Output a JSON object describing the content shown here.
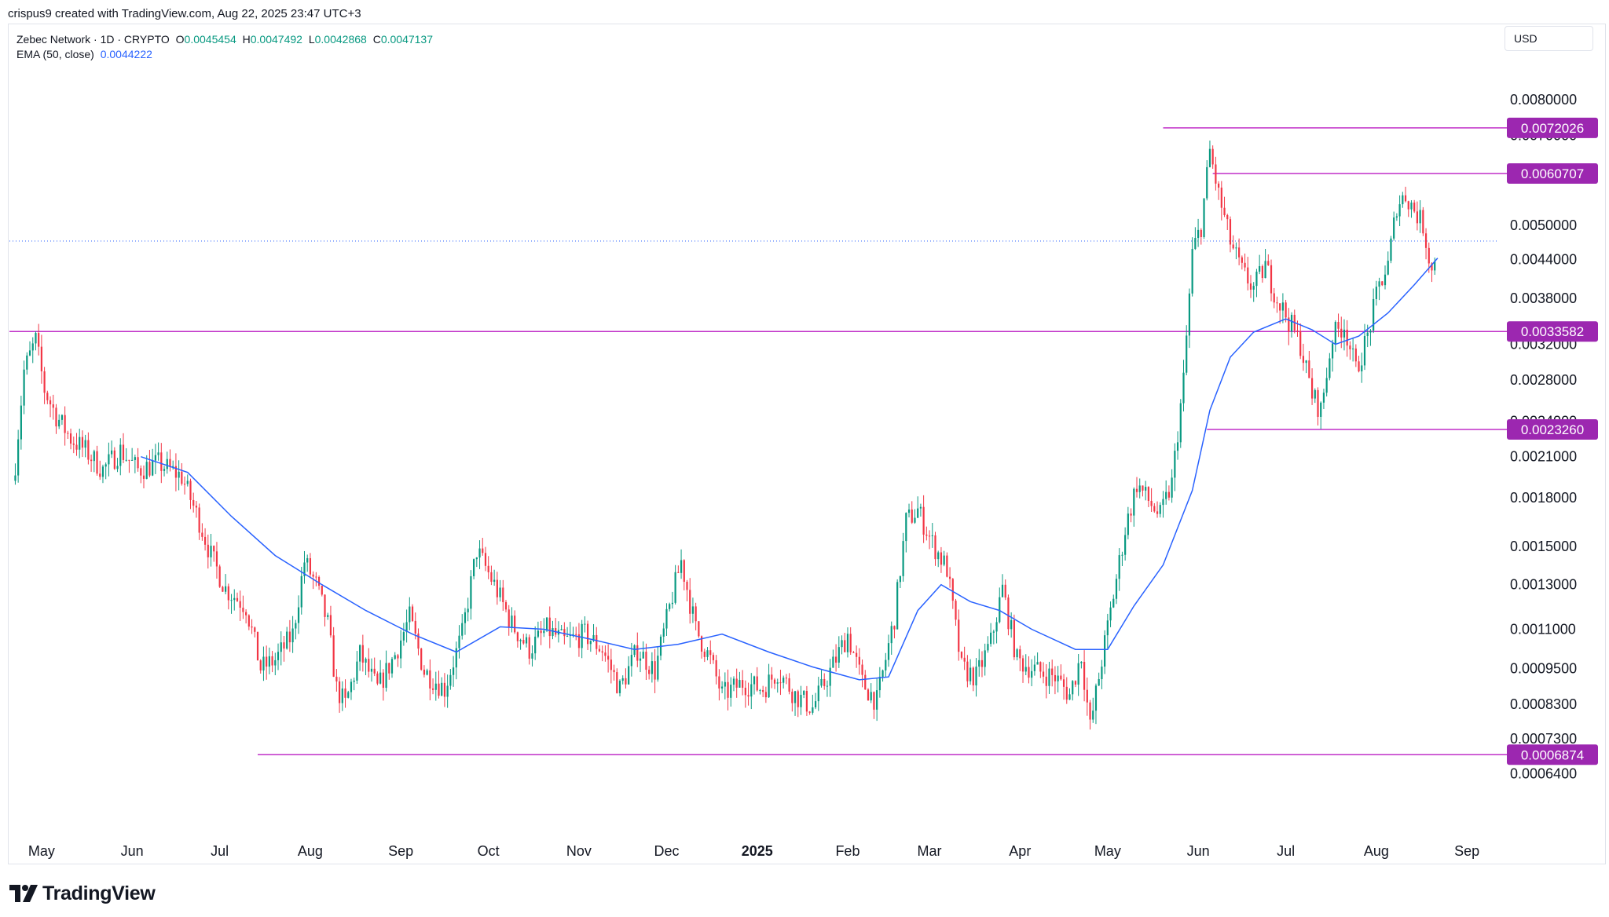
{
  "header": {
    "attribution": "crispus9 created with TradingView.com, Aug 22, 2025 23:47 UTC+3"
  },
  "legend": {
    "symbol": "Zebec Network · 1D · CRYPTO",
    "o_label": "O",
    "o_value": "0.0045454",
    "h_label": "H",
    "h_value": "0.0047492",
    "l_label": "L",
    "l_value": "0.0042868",
    "c_label": "C",
    "c_value": "0.0047137",
    "ema_label": "EMA (50, close)",
    "ema_value": "0.0044222"
  },
  "currency_button": "USD",
  "brand": {
    "name": "TradingView"
  },
  "colors": {
    "up": "#089981",
    "down": "#f23645",
    "ema": "#2962ff",
    "level": "#c02fc8",
    "grid": "#ffffff",
    "text": "#131722"
  },
  "chart_data": {
    "type": "candlestick",
    "scale": "log",
    "ylim": [
      0.00059,
      0.0088
    ],
    "x_start": "2024-04-20",
    "x_end": "2025-09-12",
    "y_ticks": [
      "0.0080000",
      "0.0070000",
      "0.0050000",
      "0.0044000",
      "0.0038000",
      "0.0032000",
      "0.0028000",
      "0.0024000",
      "0.0021000",
      "0.0018000",
      "0.0015000",
      "0.0013000",
      "0.0011000",
      "0.0009500",
      "0.0008300",
      "0.0007300",
      "0.0006400"
    ],
    "x_ticks": [
      {
        "date": "2024-05-01",
        "label": "May"
      },
      {
        "date": "2024-06-01",
        "label": "Jun"
      },
      {
        "date": "2024-07-01",
        "label": "Jul"
      },
      {
        "date": "2024-08-01",
        "label": "Aug"
      },
      {
        "date": "2024-09-01",
        "label": "Sep"
      },
      {
        "date": "2024-10-01",
        "label": "Oct"
      },
      {
        "date": "2024-11-01",
        "label": "Nov"
      },
      {
        "date": "2024-12-01",
        "label": "Dec"
      },
      {
        "date": "2025-01-01",
        "label": "2025",
        "bold": true
      },
      {
        "date": "2025-02-01",
        "label": "Feb"
      },
      {
        "date": "2025-03-01",
        "label": "Mar"
      },
      {
        "date": "2025-04-01",
        "label": "Apr"
      },
      {
        "date": "2025-05-01",
        "label": "May"
      },
      {
        "date": "2025-06-01",
        "label": "Jun"
      },
      {
        "date": "2025-07-01",
        "label": "Jul"
      },
      {
        "date": "2025-08-01",
        "label": "Aug"
      },
      {
        "date": "2025-09-01",
        "label": "Sep"
      }
    ],
    "horizontal_levels": [
      {
        "value": 0.0072026,
        "label": "0.0072026",
        "from": "2025-05-20"
      },
      {
        "value": 0.0060707,
        "label": "0.0060707",
        "from": "2025-06-06"
      },
      {
        "value": 0.0033582,
        "label": "0.0033582",
        "from": "2024-04-20"
      },
      {
        "value": 0.002326,
        "label": "0.0023260",
        "from": "2025-06-04"
      },
      {
        "value": 0.0006874,
        "label": "0.0006874",
        "from": "2024-07-14"
      }
    ],
    "last_price_line": 0.0047137,
    "close_series": [
      {
        "date": "2024-04-22",
        "close": 0.00205
      },
      {
        "date": "2024-04-25",
        "close": 0.0029
      },
      {
        "date": "2024-04-29",
        "close": 0.00325
      },
      {
        "date": "2024-05-02",
        "close": 0.0027
      },
      {
        "date": "2024-05-06",
        "close": 0.00245
      },
      {
        "date": "2024-05-11",
        "close": 0.00225
      },
      {
        "date": "2024-05-16",
        "close": 0.00215
      },
      {
        "date": "2024-05-22",
        "close": 0.002
      },
      {
        "date": "2024-05-28",
        "close": 0.00215
      },
      {
        "date": "2024-06-03",
        "close": 0.002
      },
      {
        "date": "2024-06-10",
        "close": 0.00205
      },
      {
        "date": "2024-06-18",
        "close": 0.00195
      },
      {
        "date": "2024-06-24",
        "close": 0.00165
      },
      {
        "date": "2024-06-28",
        "close": 0.00145
      },
      {
        "date": "2024-07-03",
        "close": 0.00128
      },
      {
        "date": "2024-07-10",
        "close": 0.0012
      },
      {
        "date": "2024-07-15",
        "close": 0.00095
      },
      {
        "date": "2024-07-20",
        "close": 0.00098
      },
      {
        "date": "2024-07-26",
        "close": 0.00108
      },
      {
        "date": "2024-07-30",
        "close": 0.00142
      },
      {
        "date": "2024-08-03",
        "close": 0.0013
      },
      {
        "date": "2024-08-07",
        "close": 0.00112
      },
      {
        "date": "2024-08-10",
        "close": 0.00088
      },
      {
        "date": "2024-08-13",
        "close": 0.00083
      },
      {
        "date": "2024-08-18",
        "close": 0.001
      },
      {
        "date": "2024-08-24",
        "close": 0.00088
      },
      {
        "date": "2024-08-30",
        "close": 0.001
      },
      {
        "date": "2024-09-04",
        "close": 0.00115
      },
      {
        "date": "2024-09-09",
        "close": 0.00094
      },
      {
        "date": "2024-09-16",
        "close": 0.00088
      },
      {
        "date": "2024-09-22",
        "close": 0.00108
      },
      {
        "date": "2024-09-27",
        "close": 0.00148
      },
      {
        "date": "2024-10-03",
        "close": 0.0013
      },
      {
        "date": "2024-10-09",
        "close": 0.00112
      },
      {
        "date": "2024-10-15",
        "close": 0.00102
      },
      {
        "date": "2024-10-21",
        "close": 0.0011
      },
      {
        "date": "2024-10-27",
        "close": 0.00105
      },
      {
        "date": "2024-11-03",
        "close": 0.00108
      },
      {
        "date": "2024-11-09",
        "close": 0.00102
      },
      {
        "date": "2024-11-15",
        "close": 0.00088
      },
      {
        "date": "2024-11-21",
        "close": 0.00102
      },
      {
        "date": "2024-11-27",
        "close": 0.00094
      },
      {
        "date": "2024-12-03",
        "close": 0.00125
      },
      {
        "date": "2024-12-06",
        "close": 0.00142
      },
      {
        "date": "2024-12-11",
        "close": 0.0011
      },
      {
        "date": "2024-12-16",
        "close": 0.00098
      },
      {
        "date": "2024-12-20",
        "close": 0.00086
      },
      {
        "date": "2024-12-27",
        "close": 0.0009
      },
      {
        "date": "2025-01-03",
        "close": 0.00088
      },
      {
        "date": "2025-01-08",
        "close": 0.00094
      },
      {
        "date": "2025-01-14",
        "close": 0.00086
      },
      {
        "date": "2025-01-20",
        "close": 0.00082
      },
      {
        "date": "2025-01-26",
        "close": 0.00094
      },
      {
        "date": "2025-02-01",
        "close": 0.00108
      },
      {
        "date": "2025-02-06",
        "close": 0.0009
      },
      {
        "date": "2025-02-11",
        "close": 0.00084
      },
      {
        "date": "2025-02-17",
        "close": 0.00115
      },
      {
        "date": "2025-02-21",
        "close": 0.00165
      },
      {
        "date": "2025-02-25",
        "close": 0.00172
      },
      {
        "date": "2025-03-02",
        "close": 0.00152
      },
      {
        "date": "2025-03-07",
        "close": 0.00138
      },
      {
        "date": "2025-03-12",
        "close": 0.00095
      },
      {
        "date": "2025-03-17",
        "close": 0.00092
      },
      {
        "date": "2025-03-22",
        "close": 0.00105
      },
      {
        "date": "2025-03-26",
        "close": 0.00128
      },
      {
        "date": "2025-03-31",
        "close": 0.00098
      },
      {
        "date": "2025-04-07",
        "close": 0.00094
      },
      {
        "date": "2025-04-13",
        "close": 0.00092
      },
      {
        "date": "2025-04-18",
        "close": 0.00086
      },
      {
        "date": "2025-04-22",
        "close": 0.001
      },
      {
        "date": "2025-04-25",
        "close": 0.00076
      },
      {
        "date": "2025-04-29",
        "close": 0.00098
      },
      {
        "date": "2025-05-03",
        "close": 0.00125
      },
      {
        "date": "2025-05-07",
        "close": 0.0016
      },
      {
        "date": "2025-05-11",
        "close": 0.0019
      },
      {
        "date": "2025-05-15",
        "close": 0.00178
      },
      {
        "date": "2025-05-19",
        "close": 0.00168
      },
      {
        "date": "2025-05-23",
        "close": 0.0019
      },
      {
        "date": "2025-05-27",
        "close": 0.0028
      },
      {
        "date": "2025-05-30",
        "close": 0.0045
      },
      {
        "date": "2025-06-02",
        "close": 0.005
      },
      {
        "date": "2025-06-05",
        "close": 0.0066
      },
      {
        "date": "2025-06-08",
        "close": 0.0056
      },
      {
        "date": "2025-06-12",
        "close": 0.0047
      },
      {
        "date": "2025-06-16",
        "close": 0.0042
      },
      {
        "date": "2025-06-20",
        "close": 0.00395
      },
      {
        "date": "2025-06-24",
        "close": 0.0043
      },
      {
        "date": "2025-06-28",
        "close": 0.0038
      },
      {
        "date": "2025-07-02",
        "close": 0.0035
      },
      {
        "date": "2025-07-06",
        "close": 0.0032
      },
      {
        "date": "2025-07-10",
        "close": 0.00265
      },
      {
        "date": "2025-07-13",
        "close": 0.0025
      },
      {
        "date": "2025-07-17",
        "close": 0.0033
      },
      {
        "date": "2025-07-21",
        "close": 0.00345
      },
      {
        "date": "2025-07-25",
        "close": 0.0029
      },
      {
        "date": "2025-07-29",
        "close": 0.0033
      },
      {
        "date": "2025-08-02",
        "close": 0.004
      },
      {
        "date": "2025-08-05",
        "close": 0.0043
      },
      {
        "date": "2025-08-08",
        "close": 0.0054
      },
      {
        "date": "2025-08-11",
        "close": 0.0056
      },
      {
        "date": "2025-08-14",
        "close": 0.0053
      },
      {
        "date": "2025-08-17",
        "close": 0.005
      },
      {
        "date": "2025-08-20",
        "close": 0.0042
      },
      {
        "date": "2025-08-22",
        "close": 0.0047137
      }
    ],
    "ema_series": [
      {
        "date": "2024-06-04",
        "value": 0.0021
      },
      {
        "date": "2024-06-20",
        "value": 0.00198
      },
      {
        "date": "2024-07-05",
        "value": 0.00168
      },
      {
        "date": "2024-07-20",
        "value": 0.00145
      },
      {
        "date": "2024-08-05",
        "value": 0.0013
      },
      {
        "date": "2024-08-20",
        "value": 0.00118
      },
      {
        "date": "2024-09-05",
        "value": 0.00108
      },
      {
        "date": "2024-09-20",
        "value": 0.00101
      },
      {
        "date": "2024-10-05",
        "value": 0.00111
      },
      {
        "date": "2024-10-20",
        "value": 0.0011
      },
      {
        "date": "2024-11-05",
        "value": 0.00106
      },
      {
        "date": "2024-11-20",
        "value": 0.00102
      },
      {
        "date": "2024-12-05",
        "value": 0.00104
      },
      {
        "date": "2024-12-20",
        "value": 0.00108
      },
      {
        "date": "2025-01-05",
        "value": 0.00101
      },
      {
        "date": "2025-01-20",
        "value": 0.000955
      },
      {
        "date": "2025-02-05",
        "value": 0.00091
      },
      {
        "date": "2025-02-15",
        "value": 0.00092
      },
      {
        "date": "2025-02-25",
        "value": 0.00118
      },
      {
        "date": "2025-03-05",
        "value": 0.0013
      },
      {
        "date": "2025-03-15",
        "value": 0.00122
      },
      {
        "date": "2025-03-25",
        "value": 0.00118
      },
      {
        "date": "2025-04-05",
        "value": 0.0011
      },
      {
        "date": "2025-04-20",
        "value": 0.00102
      },
      {
        "date": "2025-05-01",
        "value": 0.00102
      },
      {
        "date": "2025-05-10",
        "value": 0.0012
      },
      {
        "date": "2025-05-20",
        "value": 0.0014
      },
      {
        "date": "2025-05-30",
        "value": 0.00185
      },
      {
        "date": "2025-06-05",
        "value": 0.0025
      },
      {
        "date": "2025-06-12",
        "value": 0.00305
      },
      {
        "date": "2025-06-20",
        "value": 0.00335
      },
      {
        "date": "2025-07-01",
        "value": 0.00352
      },
      {
        "date": "2025-07-10",
        "value": 0.00338
      },
      {
        "date": "2025-07-18",
        "value": 0.0032
      },
      {
        "date": "2025-07-26",
        "value": 0.0033
      },
      {
        "date": "2025-08-05",
        "value": 0.0036
      },
      {
        "date": "2025-08-14",
        "value": 0.004
      },
      {
        "date": "2025-08-22",
        "value": 0.0044222
      }
    ]
  }
}
